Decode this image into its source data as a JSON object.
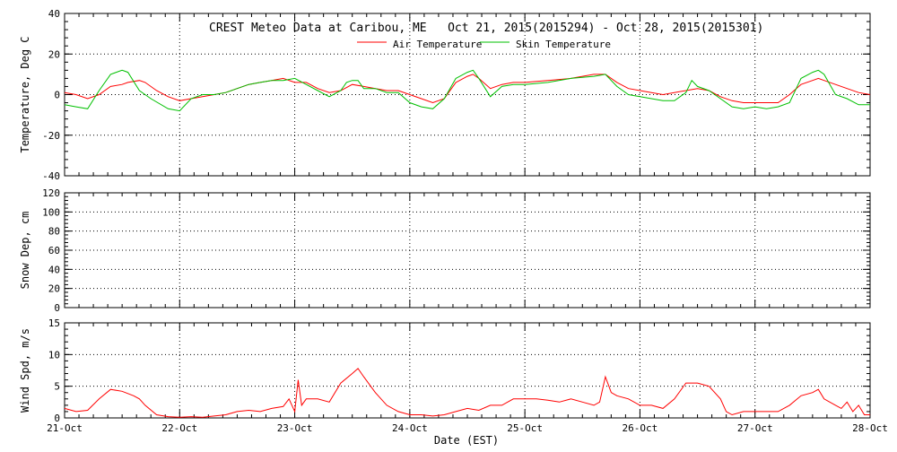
{
  "chart_data": {
    "title": "CREST Meteo Data at Caribou, ME   Oct 21, 2015(2015294) - Oct 28, 2015(2015301)",
    "xlabel": "Date (EST)",
    "x_ticks": [
      "21-Oct",
      "22-Oct",
      "23-Oct",
      "24-Oct",
      "25-Oct",
      "26-Oct",
      "27-Oct",
      "28-Oct"
    ],
    "xlim": [
      0,
      7
    ],
    "grid": true,
    "legend_position": "top-center",
    "panels": [
      {
        "id": "temperature",
        "type": "line",
        "ylabel": "Temperature, Deg C",
        "ylim": [
          -40,
          40
        ],
        "y_ticks": [
          "-40",
          "-20",
          "0",
          "20",
          "40"
        ],
        "y_tick_values": [
          -40,
          -20,
          0,
          20,
          40
        ],
        "series": [
          {
            "name": "Air Temperature",
            "color": "#ff0000",
            "points": [
              [
                0,
                1
              ],
              [
                0.1,
                0
              ],
              [
                0.2,
                -2
              ],
              [
                0.3,
                0
              ],
              [
                0.4,
                4
              ],
              [
                0.5,
                5
              ],
              [
                0.55,
                6
              ],
              [
                0.65,
                7
              ],
              [
                0.7,
                6
              ],
              [
                0.8,
                2
              ],
              [
                0.9,
                -1
              ],
              [
                1.0,
                -3
              ],
              [
                1.1,
                -2
              ],
              [
                1.2,
                -1
              ],
              [
                1.3,
                0
              ],
              [
                1.4,
                1
              ],
              [
                1.5,
                3
              ],
              [
                1.6,
                5
              ],
              [
                1.7,
                6
              ],
              [
                1.8,
                7
              ],
              [
                1.9,
                8
              ],
              [
                2.0,
                6
              ],
              [
                2.1,
                6
              ],
              [
                2.2,
                3
              ],
              [
                2.3,
                1
              ],
              [
                2.4,
                2
              ],
              [
                2.5,
                5
              ],
              [
                2.6,
                4
              ],
              [
                2.7,
                3
              ],
              [
                2.8,
                2
              ],
              [
                2.9,
                2
              ],
              [
                3.0,
                0
              ],
              [
                3.1,
                -2
              ],
              [
                3.2,
                -4
              ],
              [
                3.3,
                -2
              ],
              [
                3.4,
                6
              ],
              [
                3.5,
                9
              ],
              [
                3.55,
                10
              ],
              [
                3.6,
                8
              ],
              [
                3.7,
                3
              ],
              [
                3.8,
                5
              ],
              [
                3.9,
                6
              ],
              [
                4.0,
                6
              ],
              [
                4.2,
                7
              ],
              [
                4.4,
                8
              ],
              [
                4.6,
                10
              ],
              [
                4.7,
                10
              ],
              [
                4.8,
                6
              ],
              [
                4.9,
                3
              ],
              [
                5.0,
                2
              ],
              [
                5.2,
                0
              ],
              [
                5.4,
                2
              ],
              [
                5.5,
                3
              ],
              [
                5.6,
                2
              ],
              [
                5.7,
                -1
              ],
              [
                5.8,
                -3
              ],
              [
                5.9,
                -4
              ],
              [
                6.0,
                -4
              ],
              [
                6.1,
                -4
              ],
              [
                6.2,
                -4
              ],
              [
                6.3,
                0
              ],
              [
                6.4,
                5
              ],
              [
                6.5,
                7
              ],
              [
                6.55,
                8
              ],
              [
                6.6,
                7
              ],
              [
                6.7,
                5
              ],
              [
                6.8,
                3
              ],
              [
                6.9,
                1
              ],
              [
                7.0,
                0
              ]
            ]
          },
          {
            "name": "Skin Temperature",
            "color": "#00c000",
            "points": [
              [
                0,
                -5
              ],
              [
                0.1,
                -6
              ],
              [
                0.2,
                -7
              ],
              [
                0.3,
                2
              ],
              [
                0.4,
                10
              ],
              [
                0.5,
                12
              ],
              [
                0.55,
                11
              ],
              [
                0.65,
                2
              ],
              [
                0.75,
                -2
              ],
              [
                0.9,
                -7
              ],
              [
                1.0,
                -8
              ],
              [
                1.1,
                -2
              ],
              [
                1.2,
                0
              ],
              [
                1.3,
                0
              ],
              [
                1.4,
                1
              ],
              [
                1.5,
                3
              ],
              [
                1.6,
                5
              ],
              [
                1.7,
                6
              ],
              [
                1.8,
                7
              ],
              [
                1.9,
                7
              ],
              [
                2.0,
                8
              ],
              [
                2.1,
                5
              ],
              [
                2.2,
                2
              ],
              [
                2.3,
                -1
              ],
              [
                2.4,
                2
              ],
              [
                2.45,
                6
              ],
              [
                2.5,
                7
              ],
              [
                2.55,
                7
              ],
              [
                2.6,
                3
              ],
              [
                2.7,
                3
              ],
              [
                2.8,
                1
              ],
              [
                2.9,
                1
              ],
              [
                3.0,
                -4
              ],
              [
                3.1,
                -6
              ],
              [
                3.2,
                -7
              ],
              [
                3.3,
                -2
              ],
              [
                3.4,
                8
              ],
              [
                3.5,
                11
              ],
              [
                3.55,
                12
              ],
              [
                3.6,
                8
              ],
              [
                3.7,
                -1
              ],
              [
                3.8,
                4
              ],
              [
                3.9,
                5
              ],
              [
                4.0,
                5
              ],
              [
                4.2,
                6
              ],
              [
                4.4,
                8
              ],
              [
                4.6,
                9
              ],
              [
                4.7,
                10
              ],
              [
                4.8,
                4
              ],
              [
                4.9,
                0
              ],
              [
                5.0,
                -1
              ],
              [
                5.1,
                -2
              ],
              [
                5.2,
                -3
              ],
              [
                5.3,
                -3
              ],
              [
                5.4,
                1
              ],
              [
                5.45,
                7
              ],
              [
                5.5,
                4
              ],
              [
                5.6,
                2
              ],
              [
                5.7,
                -2
              ],
              [
                5.8,
                -6
              ],
              [
                5.9,
                -7
              ],
              [
                6.0,
                -6
              ],
              [
                6.1,
                -7
              ],
              [
                6.2,
                -6
              ],
              [
                6.3,
                -4
              ],
              [
                6.4,
                8
              ],
              [
                6.5,
                11
              ],
              [
                6.55,
                12
              ],
              [
                6.6,
                10
              ],
              [
                6.7,
                0
              ],
              [
                6.8,
                -2
              ],
              [
                6.9,
                -5
              ],
              [
                7.0,
                -5
              ]
            ]
          }
        ]
      },
      {
        "id": "snow",
        "type": "line",
        "ylabel": "Snow Dep, cm",
        "ylim": [
          0,
          120
        ],
        "y_ticks": [
          "0",
          "20",
          "40",
          "60",
          "80",
          "100",
          "120"
        ],
        "y_tick_values": [
          0,
          20,
          40,
          60,
          80,
          100,
          120
        ],
        "series": []
      },
      {
        "id": "wind",
        "type": "line",
        "ylabel": "Wind Spd, m/s",
        "ylim": [
          0,
          15
        ],
        "y_ticks": [
          "0",
          "5",
          "10",
          "15"
        ],
        "y_tick_values": [
          0,
          5,
          10,
          15
        ],
        "series": [
          {
            "color": "#ff0000",
            "points": [
              [
                0,
                1.5
              ],
              [
                0.1,
                1.0
              ],
              [
                0.2,
                1.2
              ],
              [
                0.3,
                3.0
              ],
              [
                0.4,
                4.5
              ],
              [
                0.5,
                4.2
              ],
              [
                0.6,
                3.5
              ],
              [
                0.65,
                3.0
              ],
              [
                0.7,
                2.0
              ],
              [
                0.8,
                0.5
              ],
              [
                0.9,
                0.2
              ],
              [
                1.0,
                0.1
              ],
              [
                1.1,
                0.2
              ],
              [
                1.2,
                0.1
              ],
              [
                1.3,
                0.3
              ],
              [
                1.4,
                0.5
              ],
              [
                1.5,
                1.0
              ],
              [
                1.6,
                1.2
              ],
              [
                1.7,
                1.0
              ],
              [
                1.8,
                1.5
              ],
              [
                1.9,
                1.8
              ],
              [
                1.95,
                3.0
              ],
              [
                2.0,
                1.0
              ],
              [
                2.03,
                6.0
              ],
              [
                2.06,
                2.0
              ],
              [
                2.1,
                3.0
              ],
              [
                2.2,
                3.0
              ],
              [
                2.3,
                2.5
              ],
              [
                2.4,
                5.5
              ],
              [
                2.5,
                7.0
              ],
              [
                2.55,
                7.8
              ],
              [
                2.6,
                6.5
              ],
              [
                2.7,
                4.0
              ],
              [
                2.8,
                2.0
              ],
              [
                2.9,
                1.0
              ],
              [
                3.0,
                0.5
              ],
              [
                3.1,
                0.5
              ],
              [
                3.2,
                0.3
              ],
              [
                3.3,
                0.5
              ],
              [
                3.4,
                1.0
              ],
              [
                3.5,
                1.5
              ],
              [
                3.6,
                1.2
              ],
              [
                3.7,
                2.0
              ],
              [
                3.8,
                2.0
              ],
              [
                3.9,
                3.0
              ],
              [
                4.0,
                3.0
              ],
              [
                4.1,
                3.0
              ],
              [
                4.2,
                2.8
              ],
              [
                4.3,
                2.5
              ],
              [
                4.4,
                3.0
              ],
              [
                4.5,
                2.5
              ],
              [
                4.6,
                2.0
              ],
              [
                4.65,
                2.5
              ],
              [
                4.7,
                6.5
              ],
              [
                4.75,
                4.0
              ],
              [
                4.8,
                3.5
              ],
              [
                4.9,
                3.0
              ],
              [
                5.0,
                2.0
              ],
              [
                5.1,
                2.0
              ],
              [
                5.2,
                1.5
              ],
              [
                5.3,
                3.0
              ],
              [
                5.4,
                5.5
              ],
              [
                5.5,
                5.5
              ],
              [
                5.6,
                5.0
              ],
              [
                5.7,
                3.0
              ],
              [
                5.75,
                1.0
              ],
              [
                5.8,
                0.5
              ],
              [
                5.9,
                1.0
              ],
              [
                6.0,
                1.0
              ],
              [
                6.1,
                1.0
              ],
              [
                6.2,
                1.0
              ],
              [
                6.3,
                2.0
              ],
              [
                6.4,
                3.5
              ],
              [
                6.5,
                4.0
              ],
              [
                6.55,
                4.5
              ],
              [
                6.6,
                3.0
              ],
              [
                6.7,
                2.0
              ],
              [
                6.75,
                1.5
              ],
              [
                6.8,
                2.5
              ],
              [
                6.85,
                1.0
              ],
              [
                6.9,
                2.0
              ],
              [
                6.95,
                0.5
              ],
              [
                7.0,
                0.5
              ]
            ]
          }
        ]
      }
    ]
  }
}
